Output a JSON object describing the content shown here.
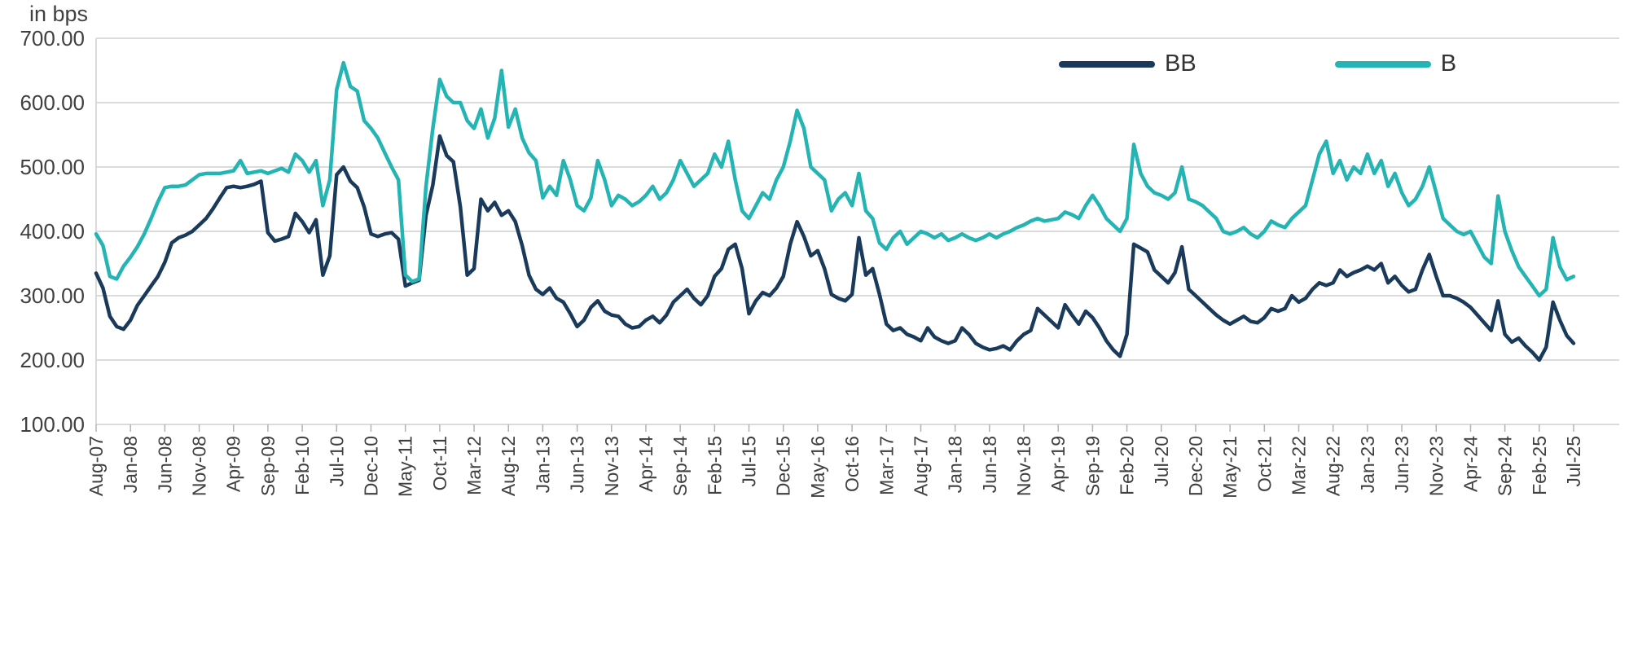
{
  "colors": {
    "background": "#ffffff",
    "grid": "#d6d6d6",
    "axis": "#b3b3b3",
    "text": "#404040",
    "legend_text": "#333333"
  },
  "chart_data": {
    "type": "line",
    "title": "",
    "unit_label": "in bps",
    "xlabel": "",
    "ylabel": "in bps",
    "ylim": [
      100,
      700
    ],
    "ytick_step": 100,
    "ytick_labels": [
      "700.00",
      "600.00",
      "500.00",
      "400.00",
      "300.00",
      "200.00",
      "100.00"
    ],
    "grid": "horizontal",
    "legend_position": "top-right",
    "x_tick_every": 5,
    "x_tick_labels": [
      "Aug-07",
      "Jan-08",
      "Jun-08",
      "Nov-08",
      "Apr-09",
      "Sep-09",
      "Feb-10",
      "Jul-10",
      "Dec-10",
      "May-11",
      "Oct-11",
      "Mar-12",
      "Aug-12",
      "Jan-13",
      "Jun-13",
      "Nov-13",
      "Apr-14",
      "Sep-14",
      "Feb-15",
      "Jul-15",
      "Dec-15",
      "May-16",
      "Oct-16",
      "Mar-17",
      "Aug-17",
      "Jan-18",
      "Jun-18",
      "Nov-18",
      "Apr-19",
      "Sep-19",
      "Feb-20",
      "Jul-20",
      "Dec-20",
      "May-21",
      "Oct-21",
      "Mar-22",
      "Aug-22",
      "Jan-23",
      "Jun-23",
      "Nov-23",
      "Apr-24",
      "Sep-24",
      "Feb-25",
      "Jul-25"
    ],
    "series": [
      {
        "name": "BB",
        "color": "#1a3a5c",
        "values": [
          335,
          312,
          268,
          252,
          248,
          262,
          285,
          300,
          315,
          330,
          352,
          382,
          390,
          394,
          400,
          410,
          420,
          435,
          452,
          468,
          470,
          468,
          470,
          473,
          478,
          398,
          385,
          388,
          392,
          428,
          415,
          398,
          418,
          332,
          362,
          488,
          500,
          478,
          468,
          438,
          396,
          392,
          396,
          398,
          388,
          315,
          320,
          324,
          425,
          472,
          548,
          518,
          508,
          438,
          332,
          342,
          450,
          432,
          445,
          425,
          432,
          415,
          378,
          332,
          310,
          302,
          312,
          296,
          290,
          272,
          252,
          262,
          282,
          292,
          276,
          270,
          268,
          256,
          250,
          252,
          262,
          268,
          258,
          270,
          290,
          300,
          310,
          296,
          286,
          300,
          330,
          342,
          372,
          380,
          342,
          272,
          292,
          305,
          300,
          312,
          330,
          380,
          415,
          392,
          362,
          370,
          342,
          302,
          296,
          292,
          302,
          390,
          332,
          342,
          302,
          256,
          246,
          250,
          240,
          236,
          230,
          250,
          236,
          230,
          226,
          230,
          250,
          240,
          226,
          220,
          216,
          218,
          222,
          216,
          230,
          240,
          246,
          280,
          270,
          260,
          250,
          286,
          270,
          256,
          276,
          266,
          250,
          230,
          216,
          206,
          240,
          380,
          374,
          368,
          340,
          330,
          320,
          336,
          376,
          310,
          300,
          290,
          280,
          270,
          262,
          256,
          262,
          268,
          260,
          258,
          266,
          280,
          276,
          280,
          300,
          290,
          296,
          310,
          320,
          316,
          320,
          340,
          330,
          336,
          340,
          346,
          340,
          350,
          320,
          330,
          316,
          306,
          310,
          340,
          364,
          330,
          300,
          300,
          296,
          290,
          282,
          270,
          258,
          246,
          292,
          240,
          228,
          234,
          222,
          212,
          200,
          220,
          290,
          262,
          238,
          226
        ]
      },
      {
        "name": "B",
        "color": "#25b4b4",
        "values": [
          396,
          378,
          330,
          326,
          346,
          360,
          376,
          396,
          420,
          446,
          468,
          470,
          470,
          472,
          480,
          488,
          490,
          490,
          490,
          492,
          494,
          510,
          490,
          492,
          494,
          490,
          494,
          498,
          492,
          520,
          510,
          492,
          510,
          440,
          480,
          620,
          662,
          625,
          618,
          572,
          560,
          545,
          522,
          500,
          480,
          332,
          322,
          326,
          470,
          560,
          636,
          610,
          600,
          600,
          572,
          560,
          590,
          545,
          576,
          650,
          562,
          590,
          545,
          522,
          510,
          452,
          470,
          456,
          510,
          480,
          440,
          432,
          452,
          510,
          480,
          440,
          456,
          450,
          440,
          446,
          456,
          470,
          450,
          460,
          480,
          510,
          490,
          470,
          480,
          490,
          520,
          500,
          540,
          480,
          432,
          420,
          440,
          460,
          450,
          480,
          500,
          540,
          588,
          560,
          500,
          490,
          480,
          432,
          450,
          460,
          440,
          490,
          432,
          420,
          382,
          372,
          390,
          400,
          380,
          390,
          400,
          396,
          390,
          396,
          386,
          390,
          396,
          390,
          386,
          390,
          396,
          390,
          396,
          400,
          406,
          410,
          416,
          420,
          416,
          418,
          420,
          430,
          426,
          420,
          440,
          456,
          440,
          420,
          410,
          400,
          420,
          535,
          490,
          470,
          460,
          456,
          450,
          460,
          500,
          450,
          446,
          440,
          430,
          420,
          400,
          396,
          400,
          406,
          396,
          390,
          400,
          416,
          410,
          406,
          420,
          430,
          440,
          480,
          520,
          540,
          490,
          510,
          480,
          500,
          490,
          520,
          490,
          510,
          470,
          490,
          460,
          440,
          450,
          470,
          500,
          460,
          420,
          410,
          400,
          395,
          400,
          380,
          360,
          350,
          455,
          400,
          370,
          345,
          330,
          315,
          300,
          310,
          390,
          345,
          325,
          330
        ]
      }
    ]
  }
}
